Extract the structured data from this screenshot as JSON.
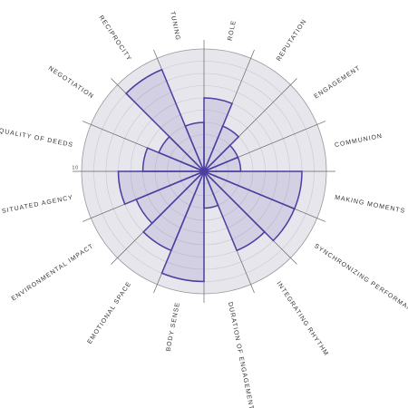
{
  "chart_data": {
    "type": "polar",
    "categories": [
      "ROLE",
      "REPUTATION",
      "ENGAGEMENT",
      "COMMUNION",
      "MAKING MOMENTS TO SIG",
      "SYNCHRONIZING PERFORMANCE",
      "INTEGRATING RHYTHM",
      "DURATION OF ENGAGEMENT",
      "BODY SENSE",
      "EMOTIONAL SPACE",
      "ENVIRONMENTAL IMPACT",
      "SITUATED AGENCY",
      "QUALITY OF DEEDS",
      "NEGOTIATION",
      "RECIPROCITY",
      "TUNING"
    ],
    "values": [
      6,
      4,
      3,
      3,
      8,
      8,
      7,
      3,
      9,
      7,
      6,
      7,
      5,
      4,
      9,
      4
    ],
    "color": "#4a3fa0",
    "rlim": [
      0,
      10
    ],
    "rticks": [
      10
    ],
    "grid": true
  }
}
